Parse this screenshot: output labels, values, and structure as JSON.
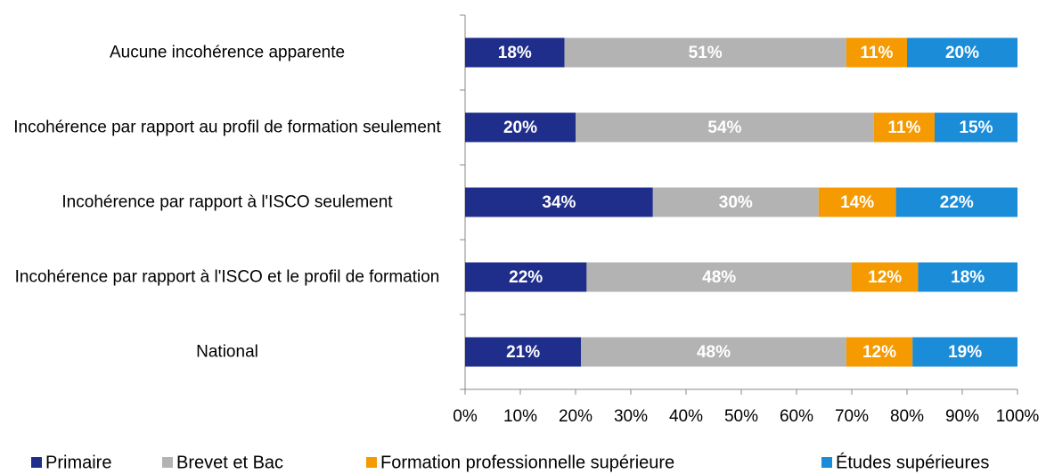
{
  "chart_data": {
    "type": "stacked_barh",
    "categories": [
      "Aucune incohérence apparente",
      "Incohérence par rapport au profil de formation seulement",
      "Incohérence par rapport à l'ISCO seulement",
      "Incohérence par rapport à l'ISCO et le profil de formation",
      "National"
    ],
    "series": [
      {
        "name": "Primaire",
        "color": "#1f2e8a",
        "values": [
          18,
          20,
          34,
          22,
          21
        ],
        "value_labels": [
          "18%",
          "20%",
          "34%",
          "22%",
          "21%"
        ]
      },
      {
        "name": "Brevet et Bac",
        "color": "#b3b3b3",
        "values": [
          51,
          54,
          30,
          48,
          48
        ],
        "value_labels": [
          "51%",
          "54%",
          "30%",
          "48%",
          "48%"
        ]
      },
      {
        "name": "Formation professionnelle supérieure",
        "color": "#f59a00",
        "values": [
          11,
          11,
          14,
          12,
          12
        ],
        "value_labels": [
          "11%",
          "11%",
          "14%",
          "12%",
          "12%"
        ]
      },
      {
        "name": "Études supérieures",
        "color": "#1a8cd8",
        "values": [
          20,
          15,
          22,
          18,
          19
        ],
        "value_labels": [
          "20%",
          "15%",
          "22%",
          "18%",
          "19%"
        ]
      }
    ],
    "xlim": [
      0,
      100
    ],
    "xticks": [
      {
        "value": 0,
        "label": "0%"
      },
      {
        "value": 10,
        "label": "10%"
      },
      {
        "value": 20,
        "label": "20%"
      },
      {
        "value": 30,
        "label": "30%"
      },
      {
        "value": 40,
        "label": "40%"
      },
      {
        "value": 50,
        "label": "50%"
      },
      {
        "value": 60,
        "label": "60%"
      },
      {
        "value": 70,
        "label": "70%"
      },
      {
        "value": 80,
        "label": "80%"
      },
      {
        "value": 90,
        "label": "90%"
      },
      {
        "value": 100,
        "label": "100%"
      }
    ],
    "legend": "bottom"
  }
}
